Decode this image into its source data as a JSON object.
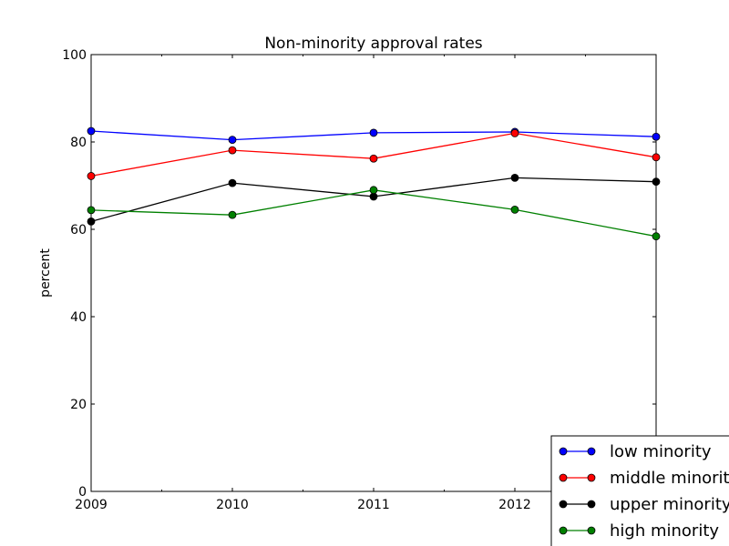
{
  "chart_data": {
    "type": "line",
    "title": "Non-minority approval rates",
    "xlabel": "",
    "ylabel": "percent",
    "x": [
      2009,
      2010,
      2011,
      2012,
      2013
    ],
    "x_tick_labels": [
      "2009",
      "2010",
      "2011",
      "2012"
    ],
    "xlim": [
      2009,
      2013
    ],
    "ylim": [
      0,
      100
    ],
    "y_ticks": [
      0,
      20,
      40,
      60,
      80,
      100
    ],
    "y_tick_labels": [
      "0",
      "20",
      "40",
      "60",
      "80",
      "100"
    ],
    "grid": false,
    "legend_position": "lower-right",
    "series": [
      {
        "name": "low minority",
        "color": "#0000ff",
        "values": [
          82.5,
          80.5,
          82.1,
          82.3,
          81.2
        ]
      },
      {
        "name": "middle minority",
        "color": "#ff0000",
        "values": [
          72.2,
          78.1,
          76.2,
          82.0,
          76.5
        ]
      },
      {
        "name": "upper minority",
        "color": "#000000",
        "values": [
          61.8,
          70.6,
          67.5,
          71.8,
          70.9
        ]
      },
      {
        "name": "high minority",
        "color": "#008000",
        "values": [
          64.4,
          63.3,
          69.0,
          64.5,
          58.4
        ]
      }
    ]
  }
}
